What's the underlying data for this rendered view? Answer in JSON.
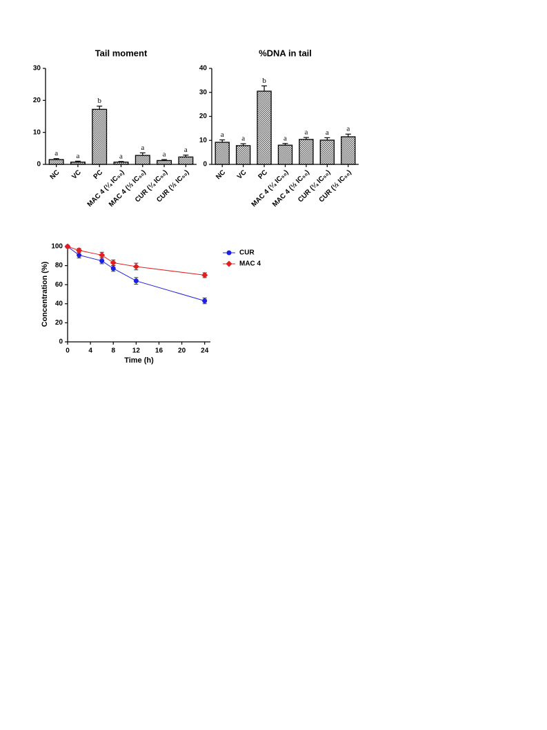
{
  "chart_data": [
    {
      "type": "bar",
      "title": "Tail moment",
      "categories": [
        "NC",
        "VC",
        "PC",
        "MAC 4 (¼ IC₅₀)",
        "MAC 4 (½ IC₅₀)",
        "CUR (¼ IC₅₀)",
        "CUR (½ IC₅₀)"
      ],
      "values": [
        1.5,
        0.7,
        17.2,
        0.7,
        2.8,
        1.2,
        2.3
      ],
      "errors": [
        0.3,
        0.3,
        1.0,
        0.2,
        0.8,
        0.3,
        0.6
      ],
      "annotations": [
        "a",
        "a",
        "b",
        "a",
        "a",
        "a",
        "a"
      ],
      "color": "#888888",
      "ylim": [
        0,
        30
      ],
      "yticks": [
        0,
        10,
        20,
        30
      ],
      "grid": false
    },
    {
      "type": "bar",
      "title": "%DNA in tail",
      "categories": [
        "NC",
        "VC",
        "PC",
        "MAC 4 (¼ IC₅₀)",
        "MAC 4 (½ IC₅₀)",
        "CUR (¼ IC₅₀)",
        "CUR (½ IC₅₀)"
      ],
      "values": [
        9.2,
        7.8,
        30.5,
        8.0,
        10.4,
        10.1,
        11.5
      ],
      "errors": [
        1.0,
        0.8,
        2.2,
        0.7,
        0.8,
        1.0,
        1.1
      ],
      "annotations": [
        "a",
        "a",
        "b",
        "a",
        "a",
        "a",
        "a"
      ],
      "color": "#888888",
      "ylim": [
        0,
        40
      ],
      "yticks": [
        0,
        10,
        20,
        30,
        40
      ],
      "grid": false
    },
    {
      "type": "line",
      "x_label": "Time (h)",
      "y_label": "Concentration (%)",
      "x": [
        0,
        2,
        6,
        8,
        12,
        24
      ],
      "series": [
        {
          "name": "CUR",
          "color": "#1f1fe0",
          "marker": "circle",
          "values": [
            100,
            91,
            85,
            77,
            64,
            43
          ],
          "errors": [
            0,
            3,
            3,
            3,
            3.5,
            3
          ]
        },
        {
          "name": "MAC 4",
          "color": "#e02020",
          "marker": "diamond",
          "values": [
            100,
            96,
            91,
            83,
            79,
            70
          ],
          "errors": [
            0,
            2,
            3,
            3,
            3.5,
            2.5
          ]
        }
      ],
      "xlim": [
        0,
        25
      ],
      "xticks": [
        0,
        4,
        8,
        12,
        16,
        20,
        24
      ],
      "ylim": [
        0,
        100
      ],
      "yticks": [
        0,
        20,
        40,
        60,
        80,
        100
      ],
      "grid": false,
      "legend": "right"
    }
  ]
}
